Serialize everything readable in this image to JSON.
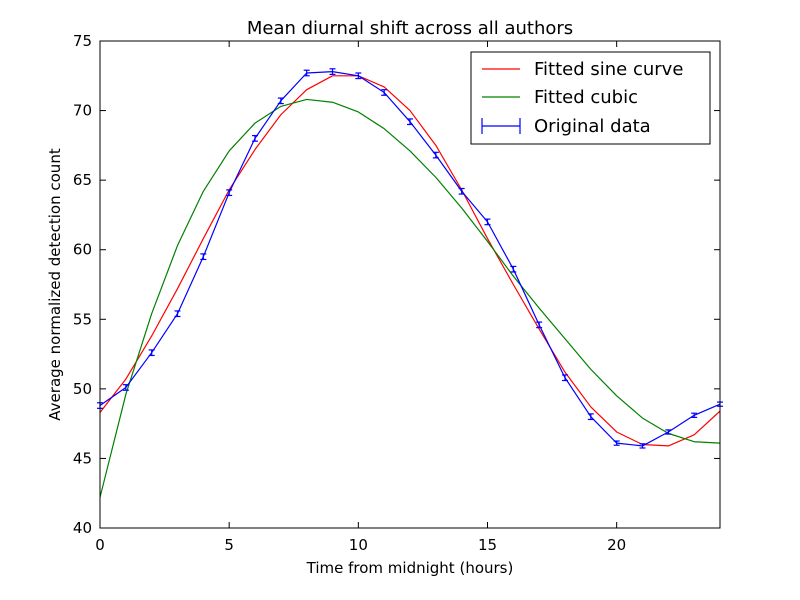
{
  "chart_data": {
    "type": "line",
    "title": "Mean diurnal shift across all authors",
    "xlabel": "Time from midnight (hours)",
    "ylabel": "Average normalized detection count",
    "xlim": [
      0,
      24
    ],
    "ylim": [
      40,
      75
    ],
    "xticks": [
      0,
      5,
      10,
      15,
      20
    ],
    "yticks": [
      40,
      45,
      50,
      55,
      60,
      65,
      70,
      75
    ],
    "grid": false,
    "legend_position": "top-right",
    "series": [
      {
        "name": "Fitted sine curve",
        "kind": "line",
        "color": "#ff0000",
        "x": [
          0,
          1,
          2,
          3,
          4,
          5,
          6,
          7,
          8,
          9,
          10,
          11,
          12,
          13,
          14,
          15,
          16,
          17,
          18,
          19,
          20,
          21,
          22,
          23,
          24
        ],
        "y": [
          48.3,
          50.7,
          53.8,
          57.2,
          60.8,
          64.3,
          67.2,
          69.7,
          71.5,
          72.5,
          72.5,
          71.7,
          70.0,
          67.5,
          64.3,
          60.8,
          57.5,
          54.3,
          51.2,
          48.7,
          46.9,
          46.0,
          45.9,
          46.7,
          48.4
        ]
      },
      {
        "name": "Fitted cubic",
        "kind": "line",
        "color": "#008000",
        "x": [
          0,
          1,
          2,
          3,
          4,
          5,
          6,
          7,
          8,
          9,
          10,
          11,
          12,
          13,
          14,
          15,
          16,
          17,
          18,
          19,
          20,
          21,
          22,
          23,
          24
        ],
        "y": [
          42.2,
          49.6,
          55.4,
          60.3,
          64.2,
          67.1,
          69.1,
          70.3,
          70.8,
          70.6,
          69.9,
          68.7,
          67.1,
          65.2,
          63.0,
          60.6,
          58.1,
          55.8,
          53.6,
          51.4,
          49.5,
          47.9,
          46.8,
          46.2,
          46.1
        ]
      },
      {
        "name": "Original data",
        "kind": "errorbar",
        "color": "#0000ff",
        "x": [
          0,
          1,
          2,
          3,
          4,
          5,
          6,
          7,
          8,
          9,
          10,
          11,
          12,
          13,
          14,
          15,
          16,
          17,
          18,
          19,
          20,
          21,
          22,
          23,
          24
        ],
        "y": [
          48.8,
          50.1,
          52.6,
          55.4,
          59.5,
          64.1,
          68.0,
          70.7,
          72.7,
          72.8,
          72.5,
          71.3,
          69.2,
          66.8,
          64.2,
          62.0,
          58.6,
          54.6,
          50.8,
          48.0,
          46.1,
          45.9,
          46.9,
          48.1,
          48.9
        ],
        "err": [
          0.2,
          0.2,
          0.2,
          0.2,
          0.2,
          0.2,
          0.2,
          0.2,
          0.2,
          0.2,
          0.2,
          0.2,
          0.2,
          0.2,
          0.2,
          0.2,
          0.2,
          0.2,
          0.2,
          0.2,
          0.15,
          0.15,
          0.15,
          0.15,
          0.15
        ]
      }
    ]
  }
}
